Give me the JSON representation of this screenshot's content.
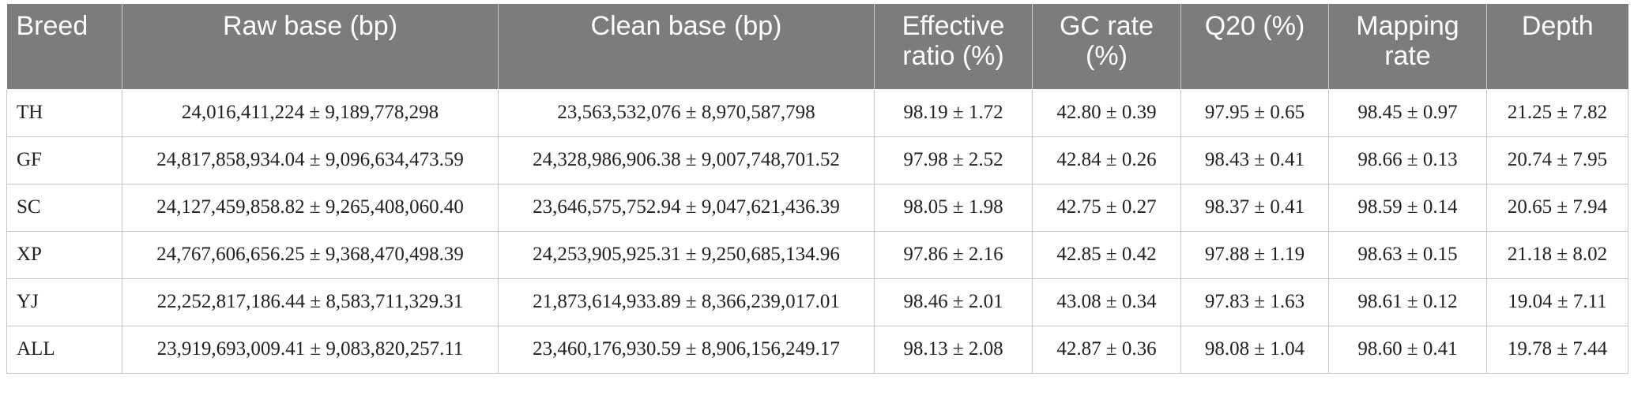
{
  "table": {
    "headers": [
      "Breed",
      "Raw base (bp)",
      "Clean base (bp)",
      "Effective ratio (%)",
      "GC rate (%)",
      "Q20 (%)",
      "Mapping rate",
      "Depth"
    ],
    "rows": [
      [
        "TH",
        "24,016,411,224 ± 9,189,778,298",
        "23,563,532,076 ± 8,970,587,798",
        "98.19 ± 1.72",
        "42.80 ± 0.39",
        "97.95 ± 0.65",
        "98.45 ± 0.97",
        "21.25 ± 7.82"
      ],
      [
        "GF",
        "24,817,858,934.04 ± 9,096,634,473.59",
        "24,328,986,906.38 ± 9,007,748,701.52",
        "97.98 ± 2.52",
        "42.84 ± 0.26",
        "98.43 ± 0.41",
        "98.66 ± 0.13",
        "20.74 ± 7.95"
      ],
      [
        "SC",
        "24,127,459,858.82 ± 9,265,408,060.40",
        "23,646,575,752.94 ± 9,047,621,436.39",
        "98.05 ± 1.98",
        "42.75 ± 0.27",
        "98.37 ± 0.41",
        "98.59 ± 0.14",
        "20.65 ± 7.94"
      ],
      [
        "XP",
        "24,767,606,656.25 ± 9,368,470,498.39",
        "24,253,905,925.31 ± 9,250,685,134.96",
        "97.86 ± 2.16",
        "42.85 ± 0.42",
        "97.88 ± 1.19",
        "98.63 ± 0.15",
        "21.18 ± 8.02"
      ],
      [
        "YJ",
        "22,252,817,186.44 ± 8,583,711,329.31",
        "21,873,614,933.89 ± 8,366,239,017.01",
        "98.46 ± 2.01",
        "43.08 ± 0.34",
        "97.83 ± 1.63",
        "98.61 ± 0.12",
        "19.04 ± 7.11"
      ],
      [
        "ALL",
        "23,919,693,009.41 ± 9,083,820,257.11",
        "23,460,176,930.59 ± 8,906,156,249.17",
        "98.13 ± 2.08",
        "42.87 ± 0.36",
        "98.08 ± 1.04",
        "98.60 ± 0.41",
        "19.78 ± 7.44"
      ]
    ]
  },
  "colors": {
    "header_bg": "#7b7c7b",
    "header_text": "#ffffff",
    "grid_line": "#c6c6c6"
  }
}
